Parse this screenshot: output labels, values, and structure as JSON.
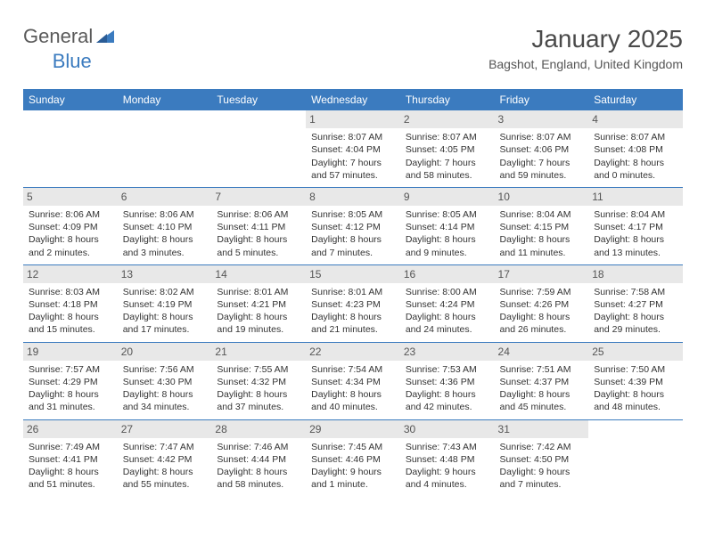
{
  "brand": {
    "word1": "General",
    "word2": "Blue"
  },
  "title": "January 2025",
  "location": "Bagshot, England, United Kingdom",
  "colors": {
    "header_bg": "#3b7bbf",
    "header_text": "#ffffff",
    "daynum_bg": "#e8e8e8",
    "rule": "#3b7bbf",
    "page_bg": "#ffffff",
    "text": "#333333",
    "brand_gray": "#5a5a5a",
    "brand_blue": "#3b7bbf"
  },
  "dayHeaders": [
    "Sunday",
    "Monday",
    "Tuesday",
    "Wednesday",
    "Thursday",
    "Friday",
    "Saturday"
  ],
  "weeks": [
    [
      null,
      null,
      null,
      {
        "n": "1",
        "sunrise": "Sunrise: 8:07 AM",
        "sunset": "Sunset: 4:04 PM",
        "day1": "Daylight: 7 hours",
        "day2": "and 57 minutes."
      },
      {
        "n": "2",
        "sunrise": "Sunrise: 8:07 AM",
        "sunset": "Sunset: 4:05 PM",
        "day1": "Daylight: 7 hours",
        "day2": "and 58 minutes."
      },
      {
        "n": "3",
        "sunrise": "Sunrise: 8:07 AM",
        "sunset": "Sunset: 4:06 PM",
        "day1": "Daylight: 7 hours",
        "day2": "and 59 minutes."
      },
      {
        "n": "4",
        "sunrise": "Sunrise: 8:07 AM",
        "sunset": "Sunset: 4:08 PM",
        "day1": "Daylight: 8 hours",
        "day2": "and 0 minutes."
      }
    ],
    [
      {
        "n": "5",
        "sunrise": "Sunrise: 8:06 AM",
        "sunset": "Sunset: 4:09 PM",
        "day1": "Daylight: 8 hours",
        "day2": "and 2 minutes."
      },
      {
        "n": "6",
        "sunrise": "Sunrise: 8:06 AM",
        "sunset": "Sunset: 4:10 PM",
        "day1": "Daylight: 8 hours",
        "day2": "and 3 minutes."
      },
      {
        "n": "7",
        "sunrise": "Sunrise: 8:06 AM",
        "sunset": "Sunset: 4:11 PM",
        "day1": "Daylight: 8 hours",
        "day2": "and 5 minutes."
      },
      {
        "n": "8",
        "sunrise": "Sunrise: 8:05 AM",
        "sunset": "Sunset: 4:12 PM",
        "day1": "Daylight: 8 hours",
        "day2": "and 7 minutes."
      },
      {
        "n": "9",
        "sunrise": "Sunrise: 8:05 AM",
        "sunset": "Sunset: 4:14 PM",
        "day1": "Daylight: 8 hours",
        "day2": "and 9 minutes."
      },
      {
        "n": "10",
        "sunrise": "Sunrise: 8:04 AM",
        "sunset": "Sunset: 4:15 PM",
        "day1": "Daylight: 8 hours",
        "day2": "and 11 minutes."
      },
      {
        "n": "11",
        "sunrise": "Sunrise: 8:04 AM",
        "sunset": "Sunset: 4:17 PM",
        "day1": "Daylight: 8 hours",
        "day2": "and 13 minutes."
      }
    ],
    [
      {
        "n": "12",
        "sunrise": "Sunrise: 8:03 AM",
        "sunset": "Sunset: 4:18 PM",
        "day1": "Daylight: 8 hours",
        "day2": "and 15 minutes."
      },
      {
        "n": "13",
        "sunrise": "Sunrise: 8:02 AM",
        "sunset": "Sunset: 4:19 PM",
        "day1": "Daylight: 8 hours",
        "day2": "and 17 minutes."
      },
      {
        "n": "14",
        "sunrise": "Sunrise: 8:01 AM",
        "sunset": "Sunset: 4:21 PM",
        "day1": "Daylight: 8 hours",
        "day2": "and 19 minutes."
      },
      {
        "n": "15",
        "sunrise": "Sunrise: 8:01 AM",
        "sunset": "Sunset: 4:23 PM",
        "day1": "Daylight: 8 hours",
        "day2": "and 21 minutes."
      },
      {
        "n": "16",
        "sunrise": "Sunrise: 8:00 AM",
        "sunset": "Sunset: 4:24 PM",
        "day1": "Daylight: 8 hours",
        "day2": "and 24 minutes."
      },
      {
        "n": "17",
        "sunrise": "Sunrise: 7:59 AM",
        "sunset": "Sunset: 4:26 PM",
        "day1": "Daylight: 8 hours",
        "day2": "and 26 minutes."
      },
      {
        "n": "18",
        "sunrise": "Sunrise: 7:58 AM",
        "sunset": "Sunset: 4:27 PM",
        "day1": "Daylight: 8 hours",
        "day2": "and 29 minutes."
      }
    ],
    [
      {
        "n": "19",
        "sunrise": "Sunrise: 7:57 AM",
        "sunset": "Sunset: 4:29 PM",
        "day1": "Daylight: 8 hours",
        "day2": "and 31 minutes."
      },
      {
        "n": "20",
        "sunrise": "Sunrise: 7:56 AM",
        "sunset": "Sunset: 4:30 PM",
        "day1": "Daylight: 8 hours",
        "day2": "and 34 minutes."
      },
      {
        "n": "21",
        "sunrise": "Sunrise: 7:55 AM",
        "sunset": "Sunset: 4:32 PM",
        "day1": "Daylight: 8 hours",
        "day2": "and 37 minutes."
      },
      {
        "n": "22",
        "sunrise": "Sunrise: 7:54 AM",
        "sunset": "Sunset: 4:34 PM",
        "day1": "Daylight: 8 hours",
        "day2": "and 40 minutes."
      },
      {
        "n": "23",
        "sunrise": "Sunrise: 7:53 AM",
        "sunset": "Sunset: 4:36 PM",
        "day1": "Daylight: 8 hours",
        "day2": "and 42 minutes."
      },
      {
        "n": "24",
        "sunrise": "Sunrise: 7:51 AM",
        "sunset": "Sunset: 4:37 PM",
        "day1": "Daylight: 8 hours",
        "day2": "and 45 minutes."
      },
      {
        "n": "25",
        "sunrise": "Sunrise: 7:50 AM",
        "sunset": "Sunset: 4:39 PM",
        "day1": "Daylight: 8 hours",
        "day2": "and 48 minutes."
      }
    ],
    [
      {
        "n": "26",
        "sunrise": "Sunrise: 7:49 AM",
        "sunset": "Sunset: 4:41 PM",
        "day1": "Daylight: 8 hours",
        "day2": "and 51 minutes."
      },
      {
        "n": "27",
        "sunrise": "Sunrise: 7:47 AM",
        "sunset": "Sunset: 4:42 PM",
        "day1": "Daylight: 8 hours",
        "day2": "and 55 minutes."
      },
      {
        "n": "28",
        "sunrise": "Sunrise: 7:46 AM",
        "sunset": "Sunset: 4:44 PM",
        "day1": "Daylight: 8 hours",
        "day2": "and 58 minutes."
      },
      {
        "n": "29",
        "sunrise": "Sunrise: 7:45 AM",
        "sunset": "Sunset: 4:46 PM",
        "day1": "Daylight: 9 hours",
        "day2": "and 1 minute."
      },
      {
        "n": "30",
        "sunrise": "Sunrise: 7:43 AM",
        "sunset": "Sunset: 4:48 PM",
        "day1": "Daylight: 9 hours",
        "day2": "and 4 minutes."
      },
      {
        "n": "31",
        "sunrise": "Sunrise: 7:42 AM",
        "sunset": "Sunset: 4:50 PM",
        "day1": "Daylight: 9 hours",
        "day2": "and 7 minutes."
      },
      null
    ]
  ]
}
